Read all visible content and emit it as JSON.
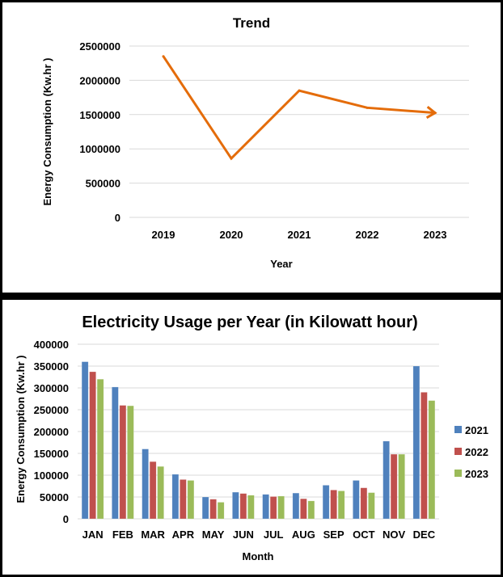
{
  "chart_data": [
    {
      "type": "line",
      "title": "Trend",
      "xlabel": "Year",
      "ylabel": "Energy Consumption  (Kw.hr )",
      "categories": [
        "2019",
        "2020",
        "2021",
        "2022",
        "2023"
      ],
      "series": [
        {
          "name": "Energy Consumption",
          "values": [
            2350000,
            860000,
            1850000,
            1600000,
            1525000
          ],
          "color": "#E46C0A"
        }
      ],
      "ylim": [
        0,
        2500000
      ],
      "yticks": [
        "0",
        "500000",
        "1000000",
        "1500000",
        "2000000",
        "2500000"
      ],
      "ytick_values": [
        0,
        500000,
        1000000,
        1500000,
        2000000,
        2500000
      ],
      "grid": true,
      "legend": "none",
      "end_marker": "arrow"
    },
    {
      "type": "bar",
      "title": "Electricity Usage per Year (in Kilowatt hour)",
      "xlabel": "Month",
      "ylabel": "Energy Consumption  (Kw.hr )",
      "categories": [
        "JAN",
        "FEB",
        "MAR",
        "APR",
        "MAY",
        "JUN",
        "JUL",
        "AUG",
        "SEP",
        "OCT",
        "NOV",
        "DEC"
      ],
      "series": [
        {
          "name": "2021",
          "color": "#4F81BD",
          "values": [
            360000,
            302000,
            160000,
            102000,
            50000,
            61000,
            56000,
            59000,
            77000,
            88000,
            178000,
            350000
          ]
        },
        {
          "name": "2022",
          "color": "#C0504D",
          "values": [
            337000,
            260000,
            131000,
            90000,
            45000,
            58000,
            51000,
            46000,
            66000,
            71000,
            148000,
            290000
          ]
        },
        {
          "name": "2023",
          "color": "#9BBB59",
          "values": [
            320000,
            259000,
            120000,
            88000,
            38000,
            54000,
            52000,
            41000,
            64000,
            60000,
            148000,
            271000
          ]
        }
      ],
      "ylim": [
        0,
        400000
      ],
      "yticks": [
        "0",
        "50000",
        "100000",
        "150000",
        "200000",
        "250000",
        "300000",
        "350000",
        "400000"
      ],
      "ytick_values": [
        0,
        50000,
        100000,
        150000,
        200000,
        250000,
        300000,
        350000,
        400000
      ],
      "grid": true,
      "legend": "right"
    }
  ]
}
